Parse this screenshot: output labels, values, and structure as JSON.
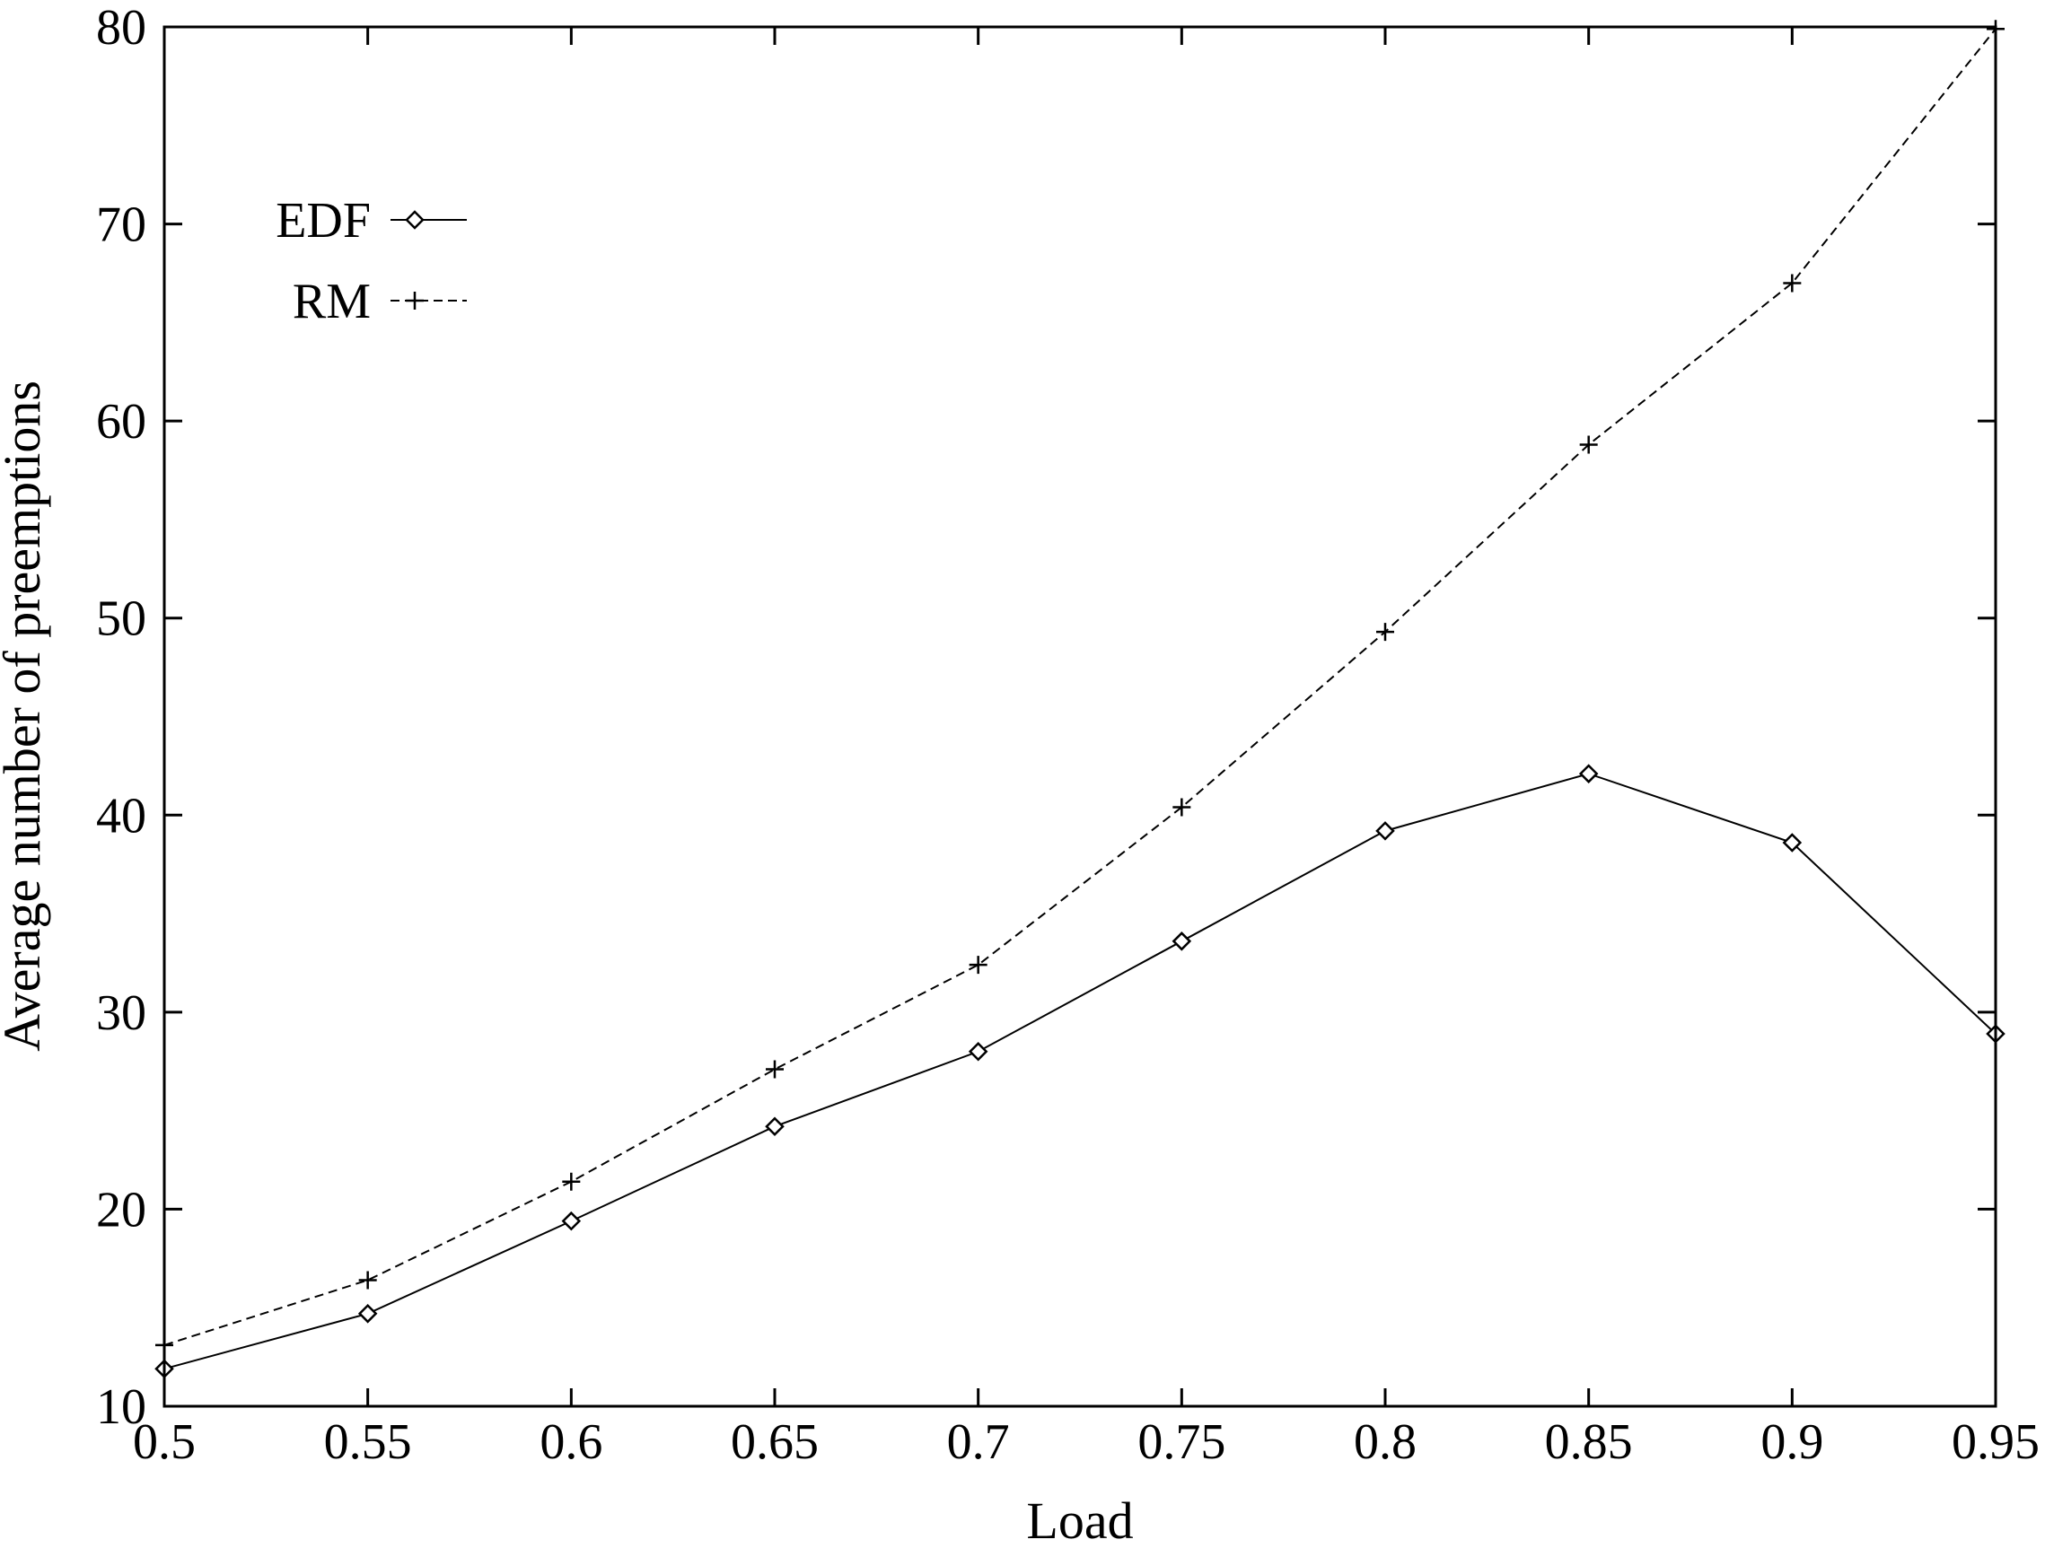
{
  "chart_data": {
    "type": "line",
    "xlabel": "Load",
    "ylabel": "Average number of preemptions",
    "xlim": [
      0.5,
      0.95
    ],
    "ylim": [
      10,
      80
    ],
    "xticks": [
      "0.5",
      "0.55",
      "0.6",
      "0.65",
      "0.7",
      "0.75",
      "0.8",
      "0.85",
      "0.9",
      "0.95"
    ],
    "yticks": [
      "10",
      "20",
      "30",
      "40",
      "50",
      "60",
      "70",
      "80"
    ],
    "grid": false,
    "legend_position": "top-left",
    "x": [
      0.5,
      0.55,
      0.6,
      0.65,
      0.7,
      0.75,
      0.8,
      0.85,
      0.9,
      0.95
    ],
    "series": [
      {
        "name": "EDF",
        "marker": "diamond",
        "line_style": "solid",
        "values": [
          11.9,
          14.7,
          19.4,
          24.2,
          28.0,
          33.6,
          39.2,
          42.1,
          38.6,
          28.9
        ]
      },
      {
        "name": "RM",
        "marker": "plus",
        "line_style": "dashed",
        "values": [
          13.1,
          16.4,
          21.4,
          27.1,
          32.4,
          40.4,
          49.3,
          58.8,
          67.0,
          79.9
        ]
      }
    ],
    "colors": {
      "line": "#000000",
      "background": "#ffffff"
    }
  }
}
